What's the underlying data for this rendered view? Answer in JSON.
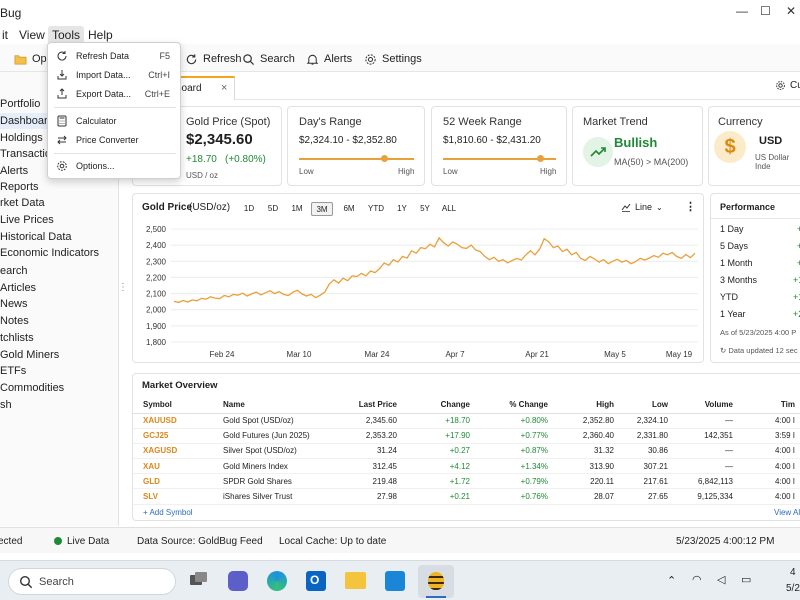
{
  "window": {
    "title": "Bug",
    "controls": [
      "—",
      "☐",
      "✕"
    ]
  },
  "menubar": {
    "items": [
      "it",
      "View",
      "Tools",
      "Help"
    ]
  },
  "tools_menu": {
    "items": [
      {
        "label": "Refresh Data",
        "shortcut": "F5",
        "icon": "refresh-icon"
      },
      {
        "label": "Import Data...",
        "shortcut": "Ctrl+I",
        "icon": "import-icon"
      },
      {
        "label": "Export Data...",
        "shortcut": "Ctrl+E",
        "icon": "export-icon"
      },
      {
        "label": "Calculator",
        "shortcut": "",
        "icon": "calculator-icon"
      },
      {
        "label": "Price Converter",
        "shortcut": "",
        "icon": "converter-icon"
      },
      {
        "label": "Options...",
        "shortcut": "",
        "icon": "gear-icon"
      }
    ]
  },
  "toolbar": {
    "open": "Ope",
    "refresh": "Refresh",
    "search": "Search",
    "alerts": "Alerts",
    "settings": "Settings",
    "customize": "Cu"
  },
  "sidebar": {
    "items": [
      "Portfolio",
      "Dashboard",
      "Holdings",
      "Transactions",
      "Alerts",
      "Reports",
      "rket Data",
      "Live Prices",
      "Historical Data",
      "Economic Indicators",
      "earch",
      "Articles",
      "News",
      "Notes",
      "tchlists",
      "Gold Miners",
      "ETFs",
      "Commodities",
      "sh"
    ]
  },
  "tab": {
    "label": "board",
    "close": "×"
  },
  "cards": {
    "spot": {
      "title": "Gold Price (Spot)",
      "price": "$2,345.60",
      "change": "+18.70",
      "pct": "(+0.80%)",
      "unit": "USD / oz"
    },
    "day_range": {
      "title": "Day's Range",
      "value": "$2,324.10  -  $2,352.80",
      "low": "Low",
      "high": "High",
      "position": 0.74
    },
    "week52": {
      "title": "52 Week Range",
      "value": "$1,810.60  -  $2,431.20",
      "low": "Low",
      "high": "High",
      "position": 0.86
    },
    "trend": {
      "title": "Market Trend",
      "value": "Bullish",
      "sub": "MA(50) > MA(200)"
    },
    "currency": {
      "title": "Currency",
      "value": "USD",
      "sub": "US Dollar Inde",
      "symbol": "$"
    }
  },
  "chart_panel": {
    "title": "Gold Price",
    "unit": "(USD/oz)",
    "ranges": [
      "1D",
      "5D",
      "1M",
      "3M",
      "6M",
      "YTD",
      "1Y",
      "5Y",
      "ALL"
    ],
    "active_range": "3M",
    "chart_type": "Line",
    "more": "⋮"
  },
  "chart_data": {
    "type": "line",
    "title": "Gold Price (USD/oz)",
    "xlabel": "",
    "ylabel": "",
    "ylim": [
      1800,
      2500
    ],
    "yticks": [
      "1,800",
      "1,900",
      "2,000",
      "2,100",
      "2,200",
      "2,300",
      "2,400",
      "2,500"
    ],
    "xticks": [
      "Feb 24",
      "Mar 10",
      "Mar 24",
      "Apr 7",
      "Apr 21",
      "May 5",
      "May 19"
    ],
    "xtick_positions": [
      0.15,
      0.33,
      0.5,
      0.67,
      0.84,
      0.99,
      1.12
    ],
    "color": "#e8a13a",
    "series": [
      {
        "values": [
          2052,
          2045,
          2058,
          2048,
          2061,
          2055,
          2070,
          2065,
          2080,
          2072,
          2068,
          2088,
          2080,
          2095,
          2090,
          2102,
          2085,
          2098,
          2110,
          2092,
          2105,
          2118,
          2100,
          2112,
          2095,
          2088,
          2108,
          2120,
          2098,
          2085,
          2095,
          2075,
          2090,
          2110,
          2160,
          2185,
          2165,
          2195,
          2180,
          2210,
          2205,
          2225,
          2210,
          2240,
          2230,
          2255,
          2290,
          2275,
          2310,
          2295,
          2330,
          2320,
          2365,
          2350,
          2385,
          2378,
          2405,
          2390,
          2445,
          2415,
          2395,
          2420,
          2405,
          2385,
          2380,
          2400,
          2370,
          2360,
          2330,
          2310,
          2325,
          2300,
          2310,
          2290,
          2305,
          2318,
          2308,
          2340,
          2365,
          2340,
          2375,
          2440,
          2420,
          2385,
          2395,
          2360,
          2375,
          2340,
          2355,
          2318,
          2305,
          2330,
          2315,
          2295,
          2310,
          2285,
          2300,
          2312,
          2295,
          2305,
          2285,
          2298,
          2318,
          2308,
          2320,
          2335,
          2325,
          2350,
          2340,
          2355,
          2330,
          2318,
          2342,
          2322,
          2350
        ]
      }
    ]
  },
  "performance": {
    "title": "Performance",
    "rows": [
      {
        "label": "1 Day",
        "value": "+"
      },
      {
        "label": "5 Days",
        "value": "+"
      },
      {
        "label": "1 Month",
        "value": "+"
      },
      {
        "label": "3 Months",
        "value": "+1"
      },
      {
        "label": "YTD",
        "value": "+1"
      },
      {
        "label": "1 Year",
        "value": "+2"
      }
    ],
    "asof": "As of 5/23/2025 4:00 P",
    "updated": "Data updated 12 sec"
  },
  "market_overview": {
    "title": "Market Overview",
    "columns": [
      "Symbol",
      "Name",
      "Last Price",
      "Change",
      "% Change",
      "High",
      "Low",
      "Volume",
      "Tim"
    ],
    "rows": [
      [
        "XAUUSD",
        "Gold Spot (USD/oz)",
        "2,345.60",
        "+18.70",
        "+0.80%",
        "2,352.80",
        "2,324.10",
        "—",
        "4:00 I"
      ],
      [
        "GCJ25",
        "Gold Futures (Jun 2025)",
        "2,353.20",
        "+17.90",
        "+0.77%",
        "2,360.40",
        "2,331.80",
        "142,351",
        "3:59 I"
      ],
      [
        "XAGUSD",
        "Silver Spot (USD/oz)",
        "31.24",
        "+0.27",
        "+0.87%",
        "31.32",
        "30.86",
        "—",
        "4:00 I"
      ],
      [
        "XAU",
        "Gold Miners Index",
        "312.45",
        "+4.12",
        "+1.34%",
        "313.90",
        "307.21",
        "—",
        "4:00 I"
      ],
      [
        "GLD",
        "SPDR Gold Shares",
        "219.48",
        "+1.72",
        "+0.79%",
        "220.11",
        "217.61",
        "6,842,113",
        "4:00 I"
      ],
      [
        "SLV",
        "iShares Silver Trust",
        "27.98",
        "+0.21",
        "+0.76%",
        "28.07",
        "27.65",
        "9,125,334",
        "4:00 I"
      ]
    ],
    "add_symbol": "+ Add Symbol",
    "view_all": "View All"
  },
  "statusbar": {
    "connected": "ected",
    "live": "Live Data",
    "source": "Data Source: GoldBug Feed",
    "cache": "Local Cache: Up to date",
    "datetime": "5/23/2025   4:00:12 PM"
  },
  "taskbar": {
    "search": "Search",
    "clock_time": "4",
    "clock_date": "5/2"
  },
  "colors": {
    "accent": "#f2a71b",
    "gold": "#e8a13a",
    "green": "#1f8a35",
    "blue": "#2d6cc0"
  }
}
